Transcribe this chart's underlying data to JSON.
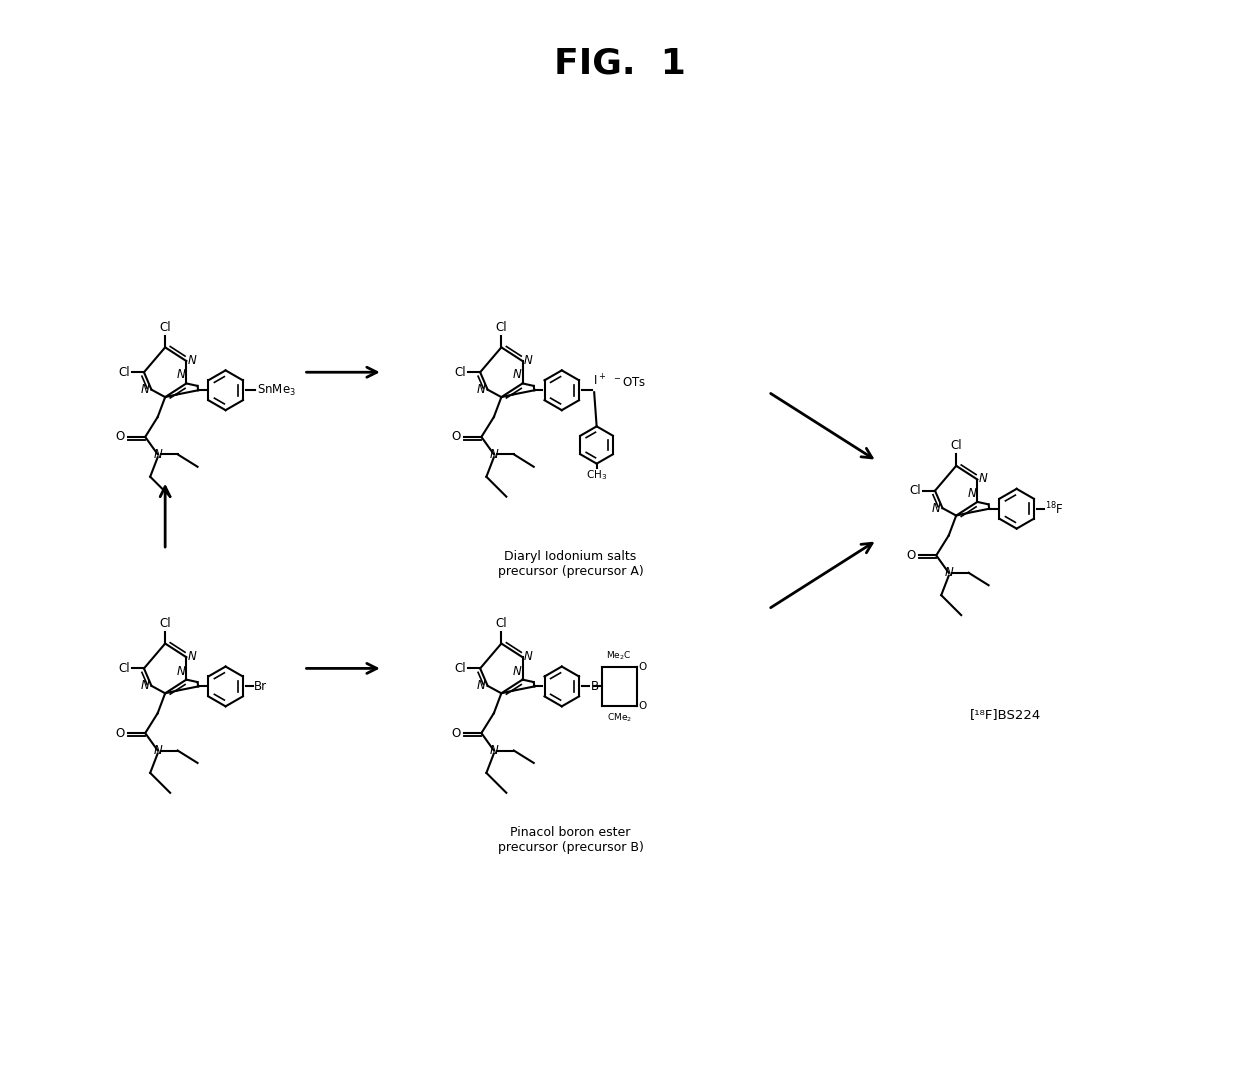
{
  "title": "FIG.  1",
  "title_fontsize": 26,
  "title_fontweight": "bold",
  "bg_color": "#ffffff",
  "figsize": [
    12.4,
    10.9
  ],
  "dpi": 100,
  "label_diaryl": "Diaryl Iodonium salts\nprecursor (precursor A)",
  "label_pinacol": "Pinacol boron ester\nprecursor (precursor B)",
  "label_product": "[¹⁸F]BS224",
  "lw": 1.5,
  "mol_scale": 1.0
}
